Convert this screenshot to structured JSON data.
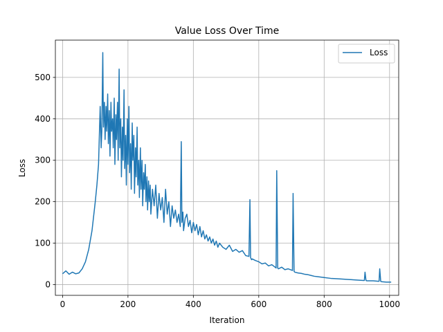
{
  "chart_data": {
    "type": "line",
    "title": "Value Loss Over Time",
    "xlabel": "Iteration",
    "ylabel": "Loss",
    "xlim": [
      -22,
      1028
    ],
    "ylim": [
      -26,
      590
    ],
    "xticks": [
      0,
      200,
      400,
      600,
      800,
      1000
    ],
    "yticks": [
      0,
      100,
      200,
      300,
      400,
      500
    ],
    "grid": true,
    "legend": "top-right",
    "series": [
      {
        "name": "Loss",
        "color": "#1f77b4",
        "x": [
          0,
          10,
          20,
          30,
          40,
          50,
          60,
          70,
          80,
          90,
          100,
          105,
          110,
          115,
          118,
          120,
          123,
          125,
          128,
          130,
          133,
          135,
          138,
          140,
          143,
          145,
          148,
          150,
          153,
          155,
          158,
          160,
          163,
          165,
          168,
          170,
          173,
          175,
          178,
          180,
          183,
          185,
          188,
          190,
          193,
          195,
          198,
          200,
          203,
          205,
          208,
          210,
          213,
          215,
          218,
          220,
          223,
          225,
          228,
          230,
          233,
          235,
          238,
          240,
          243,
          245,
          248,
          250,
          253,
          255,
          258,
          260,
          263,
          265,
          268,
          270,
          275,
          280,
          285,
          290,
          295,
          300,
          305,
          310,
          315,
          320,
          325,
          330,
          335,
          340,
          345,
          350,
          355,
          360,
          363,
          365,
          368,
          370,
          375,
          380,
          385,
          390,
          395,
          400,
          405,
          410,
          415,
          420,
          425,
          430,
          435,
          440,
          445,
          450,
          455,
          460,
          465,
          470,
          475,
          480,
          490,
          500,
          510,
          520,
          530,
          540,
          550,
          560,
          570,
          573,
          575,
          578,
          580,
          590,
          600,
          610,
          620,
          630,
          640,
          650,
          653,
          655,
          658,
          660,
          670,
          680,
          690,
          700,
          703,
          705,
          708,
          710,
          720,
          730,
          740,
          750,
          760,
          770,
          780,
          790,
          800,
          820,
          840,
          860,
          880,
          900,
          920,
          923,
          925,
          928,
          930,
          950,
          965,
          968,
          970,
          973,
          975,
          990,
          1000,
          1005
        ],
        "values": [
          26,
          33,
          25,
          30,
          26,
          28,
          38,
          55,
          85,
          130,
          200,
          240,
          290,
          430,
          330,
          370,
          560,
          380,
          440,
          350,
          430,
          370,
          460,
          340,
          420,
          310,
          440,
          370,
          400,
          330,
          450,
          290,
          410,
          350,
          440,
          300,
          520,
          330,
          400,
          260,
          380,
          300,
          470,
          280,
          360,
          240,
          400,
          290,
          430,
          270,
          340,
          230,
          390,
          300,
          360,
          220,
          330,
          260,
          380,
          240,
          300,
          210,
          330,
          230,
          300,
          190,
          270,
          230,
          290,
          200,
          260,
          180,
          250,
          200,
          240,
          170,
          230,
          190,
          240,
          160,
          220,
          180,
          210,
          150,
          230,
          170,
          200,
          140,
          190,
          160,
          180,
          150,
          170,
          140,
          345,
          150,
          175,
          130,
          160,
          170,
          140,
          155,
          125,
          150,
          130,
          145,
          120,
          140,
          115,
          130,
          110,
          120,
          105,
          115,
          100,
          110,
          95,
          105,
          90,
          100,
          90,
          85,
          95,
          80,
          85,
          78,
          82,
          70,
          68,
          205,
          65,
          60,
          62,
          58,
          55,
          50,
          52,
          45,
          48,
          42,
          40,
          275,
          40,
          38,
          42,
          36,
          38,
          35,
          34,
          220,
          32,
          30,
          28,
          27,
          25,
          24,
          22,
          20,
          19,
          18,
          17,
          15,
          14,
          13,
          12,
          11,
          10,
          10,
          30,
          10,
          9,
          9,
          8,
          8,
          38,
          8,
          7,
          6,
          6,
          6
        ]
      }
    ]
  }
}
